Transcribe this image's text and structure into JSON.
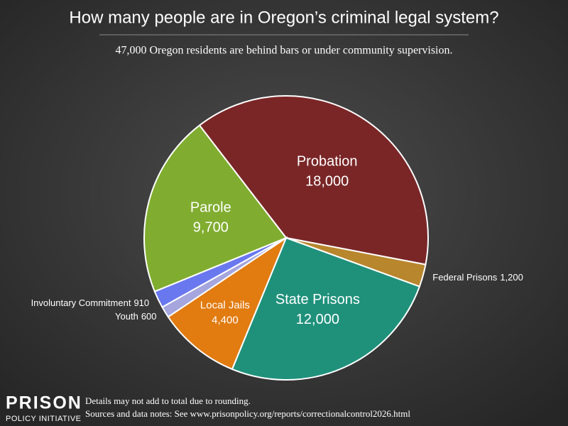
{
  "chart_data": {
    "type": "pie",
    "title": "How many people are in Oregon’s criminal legal system?",
    "subtitle": "47,000 Oregon residents are behind bars or under community supervision.",
    "categories": [
      "Probation",
      "Federal Prisons",
      "State Prisons",
      "Local Jails",
      "Youth",
      "Involuntary Commitment",
      "Parole"
    ],
    "values": [
      18000,
      1200,
      12000,
      4400,
      600,
      910,
      9700
    ],
    "value_labels": [
      "18,000",
      "1,200",
      "12,000",
      "4,400",
      "600",
      "910",
      "9,700"
    ],
    "colors": [
      "#7a2627",
      "#b8862c",
      "#1f917b",
      "#e27b10",
      "#a5a6de",
      "#6a78ef",
      "#80ad2f"
    ],
    "brand": "PRISON",
    "brand_sub": "POLICY INITIATIVE",
    "notes": [
      "Details may not add to total due to rounding.",
      "Sources and data notes: See www.prisonpolicy.org/reports/correctionalcontrol2026.html"
    ]
  }
}
